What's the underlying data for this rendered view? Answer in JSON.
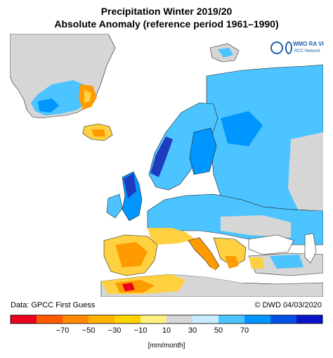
{
  "title": "Precipitation Winter 2019/20",
  "subtitle": "Absolute Anomaly (reference period 1961–1990)",
  "logo": {
    "line1": "WMO RA VI",
    "line2": "RCC Network"
  },
  "footer": {
    "source": "Data: GPCC First Guess",
    "credit": "© DWD 04/03/2020"
  },
  "legend": {
    "unit": "[mm/month]",
    "tick_labels": [
      "−70",
      "−50",
      "−30",
      "−10",
      "10",
      "30",
      "50",
      "70"
    ],
    "colors": [
      "#e8001e",
      "#ff5a00",
      "#ff8a00",
      "#ffb300",
      "#ffd300",
      "#ffef80",
      "#d7d7d7",
      "#c8ecff",
      "#4cc4ff",
      "#0096ff",
      "#0050e6",
      "#0a14c8"
    ]
  },
  "colors": {
    "ocean": "#ffffff",
    "land_neutral": "#d6d6d6",
    "wet_light": "#4cc4ff",
    "wet_medium": "#0096ff",
    "wet_strong": "#1e3cbe",
    "dry_light": "#ffd040",
    "dry_medium": "#ff9a00",
    "dry_strong": "#e8001e"
  }
}
